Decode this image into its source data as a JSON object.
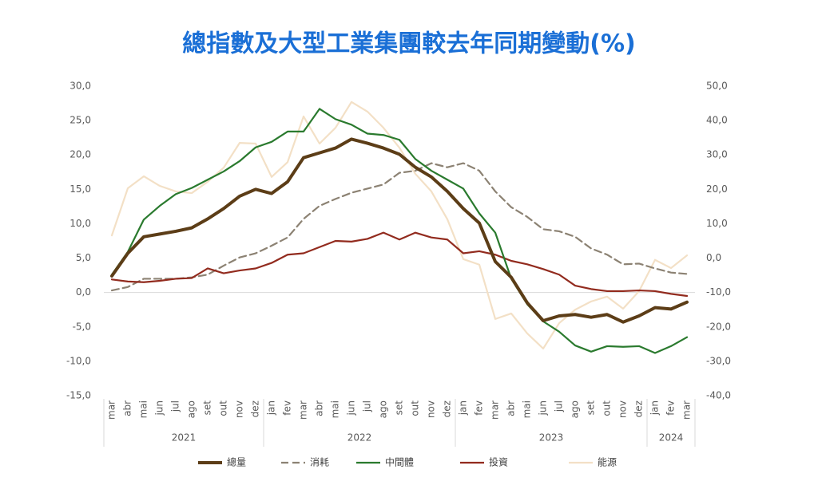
{
  "chart_data": {
    "type": "line",
    "title": "總指數及大型工業集團較去年同期變動(%)",
    "year_groups": [
      {
        "year": "2021",
        "months": [
          "mar",
          "abr",
          "mai",
          "jun",
          "jul",
          "ago",
          "set",
          "out",
          "nov",
          "dez"
        ]
      },
      {
        "year": "2022",
        "months": [
          "jan",
          "fev",
          "mar",
          "abr",
          "mai",
          "jun",
          "jul",
          "ago",
          "set",
          "out",
          "nov",
          "dez"
        ]
      },
      {
        "year": "2023",
        "months": [
          "jan",
          "fev",
          "mar",
          "abr",
          "mai",
          "jun",
          "jul",
          "ago",
          "set",
          "out",
          "nov",
          "dez"
        ]
      },
      {
        "year": "2024",
        "months": [
          "jan",
          "fev",
          "mar"
        ]
      }
    ],
    "ylim": [
      -15,
      30
    ],
    "yticks": [
      {
        "value": -15,
        "label": "-15,0"
      },
      {
        "value": -10,
        "label": "-10,0"
      },
      {
        "value": -5,
        "label": "-5,0"
      },
      {
        "value": 0,
        "label": "0,0"
      },
      {
        "value": 5,
        "label": "5,0"
      },
      {
        "value": 10,
        "label": "10,0"
      },
      {
        "value": 15,
        "label": "15,0"
      },
      {
        "value": 20,
        "label": "20,0"
      },
      {
        "value": 25,
        "label": "25,0"
      },
      {
        "value": 30,
        "label": "30,0"
      }
    ],
    "y2lim": [
      -40,
      50
    ],
    "y2ticks": [
      {
        "value": -40,
        "label": "-40,0"
      },
      {
        "value": -30,
        "label": "-30,0"
      },
      {
        "value": -20,
        "label": "-20,0"
      },
      {
        "value": -10,
        "label": "-10,0"
      },
      {
        "value": 0,
        "label": "0,0"
      },
      {
        "value": 10,
        "label": "10,0"
      },
      {
        "value": 20,
        "label": "20,0"
      },
      {
        "value": 30,
        "label": "30,0"
      },
      {
        "value": 40,
        "label": "40,0"
      },
      {
        "value": 50,
        "label": "50,0"
      }
    ],
    "grid": false,
    "legend": "bottom",
    "series": [
      {
        "name": "總量",
        "color": "#5c3d17",
        "line_style": "thick",
        "values": [
          2.4,
          5.7,
          8.1,
          8.5,
          8.9,
          9.4,
          10.7,
          12.2,
          14.0,
          15.0,
          14.4,
          16.1,
          19.6,
          20.3,
          21.0,
          22.3,
          21.7,
          21.0,
          20.1,
          18.2,
          16.8,
          14.7,
          12.2,
          10.1,
          4.5,
          2.2,
          -1.5,
          -4.1,
          -3.4,
          -3.2,
          -3.6,
          -3.2,
          -4.3,
          -3.4,
          -2.2,
          -2.4,
          -1.4
        ]
      },
      {
        "name": "消耗",
        "color": "#8c8273",
        "line_style": "dashed",
        "values": [
          0.3,
          0.8,
          2.0,
          2.0,
          2.0,
          2.2,
          2.6,
          3.9,
          5.1,
          5.7,
          6.8,
          8.0,
          10.7,
          12.6,
          13.6,
          14.5,
          15.1,
          15.7,
          17.4,
          17.7,
          18.8,
          18.2,
          18.8,
          17.7,
          14.7,
          12.4,
          11.0,
          9.2,
          8.9,
          8.1,
          6.4,
          5.5,
          4.1,
          4.2,
          3.5,
          2.9,
          2.7
        ]
      },
      {
        "name": "中間體",
        "color": "#2a7a2e",
        "line_style": "solid",
        "values": [
          2.6,
          5.9,
          10.6,
          12.6,
          14.3,
          15.2,
          16.4,
          17.6,
          19.1,
          21.1,
          21.9,
          23.4,
          23.4,
          26.7,
          25.2,
          24.4,
          23.1,
          22.9,
          22.2,
          19.4,
          17.7,
          16.4,
          15.1,
          11.5,
          8.7,
          2.0,
          -1.7,
          -4.2,
          -5.7,
          -7.7,
          -8.6,
          -7.8,
          -7.9,
          -7.8,
          -8.8,
          -7.8,
          -6.5
        ]
      },
      {
        "name": "投資",
        "color": "#922b1e",
        "line_style": "solid",
        "values": [
          1.9,
          1.6,
          1.5,
          1.7,
          2.0,
          2.1,
          3.5,
          2.8,
          3.2,
          3.5,
          4.3,
          5.5,
          5.7,
          6.6,
          7.5,
          7.4,
          7.8,
          8.7,
          7.7,
          8.7,
          8.0,
          7.7,
          5.7,
          6.0,
          5.5,
          4.6,
          4.1,
          3.4,
          2.6,
          1.0,
          0.5,
          0.2,
          0.2,
          0.3,
          0.2,
          -0.2,
          -0.5
        ]
      },
      {
        "name": "能源",
        "color": "#f3e0c6",
        "line_style": "solid",
        "axis": "y2",
        "values": [
          6.6,
          20.3,
          23.8,
          21.0,
          19.4,
          18.9,
          22.2,
          26.3,
          33.5,
          33.3,
          23.6,
          27.9,
          41.2,
          33.3,
          37.9,
          45.4,
          42.6,
          37.9,
          32.1,
          24.5,
          19.4,
          11.3,
          -0.3,
          -1.9,
          -17.7,
          -16.1,
          -21.9,
          -26.3,
          -18.9,
          -15.0,
          -12.6,
          -11.2,
          -14.7,
          -9.6,
          -0.5,
          -2.9,
          0.8
        ]
      }
    ]
  }
}
